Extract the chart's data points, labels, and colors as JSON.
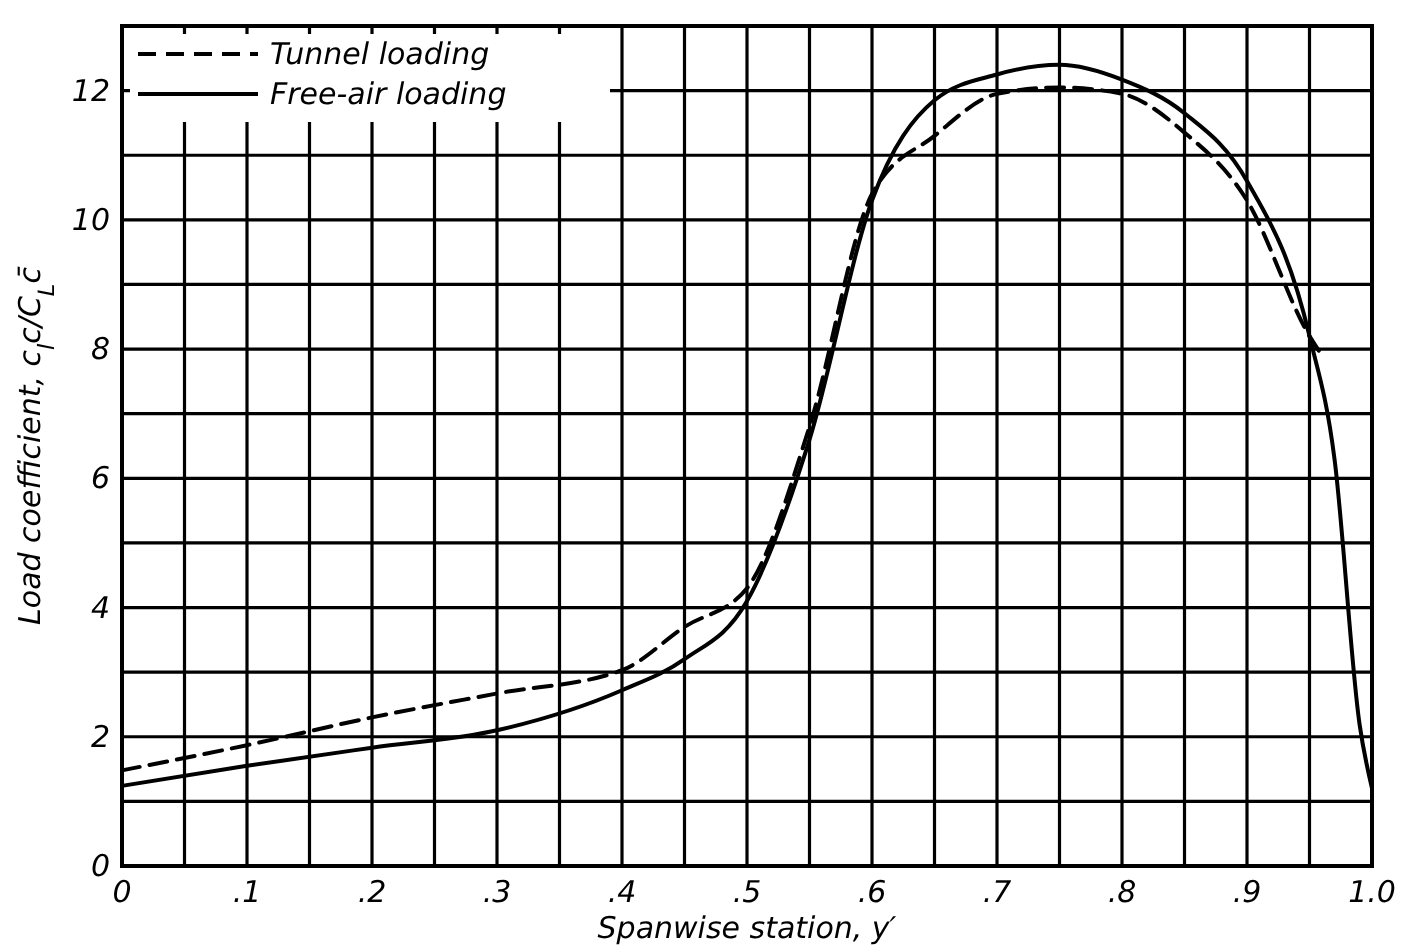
{
  "chart_data": {
    "type": "line",
    "xlabel": "Spanwise station, y′",
    "ylabel": "Load coefficient, c$_{l}$c/C$_{L}$c̄",
    "xlim": [
      0,
      1.0
    ],
    "ylim": [
      0,
      13
    ],
    "xticks": [
      0,
      {
        "value": 0.05,
        "label": null
      },
      {
        "value": 0.1,
        "label": ".1"
      },
      {
        "value": 0.15,
        "label": null
      },
      {
        "value": 0.2,
        "label": ".2"
      },
      {
        "value": 0.25,
        "label": null
      },
      {
        "value": 0.3,
        "label": ".3"
      },
      {
        "value": 0.35,
        "label": null
      },
      {
        "value": 0.4,
        "label": ".4"
      },
      {
        "value": 0.45,
        "label": null
      },
      {
        "value": 0.5,
        "label": ".5"
      },
      {
        "value": 0.55,
        "label": null
      },
      {
        "value": 0.6,
        "label": ".6"
      },
      {
        "value": 0.65,
        "label": null
      },
      {
        "value": 0.7,
        "label": ".7"
      },
      {
        "value": 0.75,
        "label": null
      },
      {
        "value": 0.8,
        "label": ".8"
      },
      {
        "value": 0.85,
        "label": null
      },
      {
        "value": 0.9,
        "label": ".9"
      },
      {
        "value": 0.95,
        "label": null
      },
      {
        "value": 1.0,
        "label": "1.0"
      }
    ],
    "yticks": [
      0,
      {
        "value": 1,
        "label": null
      },
      2,
      {
        "value": 3,
        "label": null
      },
      4,
      {
        "value": 5,
        "label": null
      },
      6,
      {
        "value": 7,
        "label": null
      },
      8,
      {
        "value": 9,
        "label": null
      },
      10,
      {
        "value": 11,
        "label": null
      },
      12,
      {
        "value": 13,
        "label": null
      }
    ],
    "grid": true,
    "legend": "top left",
    "series": [
      {
        "name": "Tunnel loading",
        "color": "#000000",
        "line_style": "dashed",
        "x": [
          0,
          0.1,
          0.2,
          0.3,
          0.4,
          0.45,
          0.5,
          0.55,
          0.6,
          0.65,
          0.7,
          0.75,
          0.8,
          0.85,
          0.9,
          0.95,
          0.96
        ],
        "values": [
          1.48,
          1.87,
          2.3,
          2.67,
          3.03,
          3.7,
          4.3,
          6.8,
          10.4,
          11.3,
          11.95,
          12.05,
          11.95,
          11.35,
          10.3,
          8.2,
          7.9
        ]
      },
      {
        "name": "Free-air loading",
        "color": "#000000",
        "line_style": "solid",
        "x": [
          0,
          0.1,
          0.2,
          0.3,
          0.4,
          0.45,
          0.5,
          0.55,
          0.6,
          0.65,
          0.7,
          0.75,
          0.8,
          0.85,
          0.9,
          0.95,
          0.97,
          0.99,
          1.0
        ],
        "values": [
          1.24,
          1.55,
          1.83,
          2.1,
          2.72,
          3.2,
          4.1,
          6.6,
          10.3,
          11.85,
          12.25,
          12.4,
          12.17,
          11.65,
          10.6,
          8.2,
          6.3,
          2.2,
          1.2
        ]
      }
    ]
  }
}
